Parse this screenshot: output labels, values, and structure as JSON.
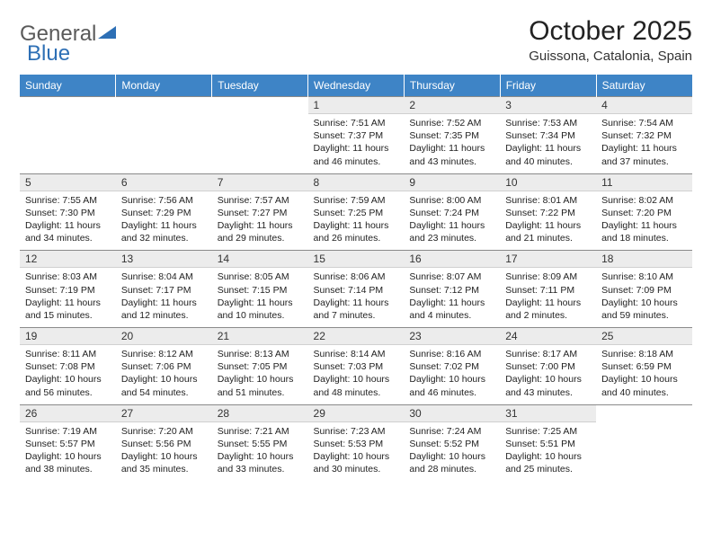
{
  "logo": {
    "text1": "General",
    "text2": "Blue"
  },
  "title": "October 2025",
  "location": "Guissona, Catalonia, Spain",
  "colors": {
    "header_bg": "#3e84c6",
    "header_fg": "#ffffff",
    "daynum_bg": "#ececec",
    "border": "#8a8a8a",
    "logo_gray": "#5a5a5a",
    "logo_blue": "#2d6fb5"
  },
  "day_names": [
    "Sunday",
    "Monday",
    "Tuesday",
    "Wednesday",
    "Thursday",
    "Friday",
    "Saturday"
  ],
  "weeks": [
    [
      null,
      null,
      null,
      {
        "n": "1",
        "sr": "7:51 AM",
        "ss": "7:37 PM",
        "dl": "11 hours and 46 minutes."
      },
      {
        "n": "2",
        "sr": "7:52 AM",
        "ss": "7:35 PM",
        "dl": "11 hours and 43 minutes."
      },
      {
        "n": "3",
        "sr": "7:53 AM",
        "ss": "7:34 PM",
        "dl": "11 hours and 40 minutes."
      },
      {
        "n": "4",
        "sr": "7:54 AM",
        "ss": "7:32 PM",
        "dl": "11 hours and 37 minutes."
      }
    ],
    [
      {
        "n": "5",
        "sr": "7:55 AM",
        "ss": "7:30 PM",
        "dl": "11 hours and 34 minutes."
      },
      {
        "n": "6",
        "sr": "7:56 AM",
        "ss": "7:29 PM",
        "dl": "11 hours and 32 minutes."
      },
      {
        "n": "7",
        "sr": "7:57 AM",
        "ss": "7:27 PM",
        "dl": "11 hours and 29 minutes."
      },
      {
        "n": "8",
        "sr": "7:59 AM",
        "ss": "7:25 PM",
        "dl": "11 hours and 26 minutes."
      },
      {
        "n": "9",
        "sr": "8:00 AM",
        "ss": "7:24 PM",
        "dl": "11 hours and 23 minutes."
      },
      {
        "n": "10",
        "sr": "8:01 AM",
        "ss": "7:22 PM",
        "dl": "11 hours and 21 minutes."
      },
      {
        "n": "11",
        "sr": "8:02 AM",
        "ss": "7:20 PM",
        "dl": "11 hours and 18 minutes."
      }
    ],
    [
      {
        "n": "12",
        "sr": "8:03 AM",
        "ss": "7:19 PM",
        "dl": "11 hours and 15 minutes."
      },
      {
        "n": "13",
        "sr": "8:04 AM",
        "ss": "7:17 PM",
        "dl": "11 hours and 12 minutes."
      },
      {
        "n": "14",
        "sr": "8:05 AM",
        "ss": "7:15 PM",
        "dl": "11 hours and 10 minutes."
      },
      {
        "n": "15",
        "sr": "8:06 AM",
        "ss": "7:14 PM",
        "dl": "11 hours and 7 minutes."
      },
      {
        "n": "16",
        "sr": "8:07 AM",
        "ss": "7:12 PM",
        "dl": "11 hours and 4 minutes."
      },
      {
        "n": "17",
        "sr": "8:09 AM",
        "ss": "7:11 PM",
        "dl": "11 hours and 2 minutes."
      },
      {
        "n": "18",
        "sr": "8:10 AM",
        "ss": "7:09 PM",
        "dl": "10 hours and 59 minutes."
      }
    ],
    [
      {
        "n": "19",
        "sr": "8:11 AM",
        "ss": "7:08 PM",
        "dl": "10 hours and 56 minutes."
      },
      {
        "n": "20",
        "sr": "8:12 AM",
        "ss": "7:06 PM",
        "dl": "10 hours and 54 minutes."
      },
      {
        "n": "21",
        "sr": "8:13 AM",
        "ss": "7:05 PM",
        "dl": "10 hours and 51 minutes."
      },
      {
        "n": "22",
        "sr": "8:14 AM",
        "ss": "7:03 PM",
        "dl": "10 hours and 48 minutes."
      },
      {
        "n": "23",
        "sr": "8:16 AM",
        "ss": "7:02 PM",
        "dl": "10 hours and 46 minutes."
      },
      {
        "n": "24",
        "sr": "8:17 AM",
        "ss": "7:00 PM",
        "dl": "10 hours and 43 minutes."
      },
      {
        "n": "25",
        "sr": "8:18 AM",
        "ss": "6:59 PM",
        "dl": "10 hours and 40 minutes."
      }
    ],
    [
      {
        "n": "26",
        "sr": "7:19 AM",
        "ss": "5:57 PM",
        "dl": "10 hours and 38 minutes."
      },
      {
        "n": "27",
        "sr": "7:20 AM",
        "ss": "5:56 PM",
        "dl": "10 hours and 35 minutes."
      },
      {
        "n": "28",
        "sr": "7:21 AM",
        "ss": "5:55 PM",
        "dl": "10 hours and 33 minutes."
      },
      {
        "n": "29",
        "sr": "7:23 AM",
        "ss": "5:53 PM",
        "dl": "10 hours and 30 minutes."
      },
      {
        "n": "30",
        "sr": "7:24 AM",
        "ss": "5:52 PM",
        "dl": "10 hours and 28 minutes."
      },
      {
        "n": "31",
        "sr": "7:25 AM",
        "ss": "5:51 PM",
        "dl": "10 hours and 25 minutes."
      },
      null
    ]
  ],
  "labels": {
    "sunrise": "Sunrise:",
    "sunset": "Sunset:",
    "daylight": "Daylight:"
  }
}
